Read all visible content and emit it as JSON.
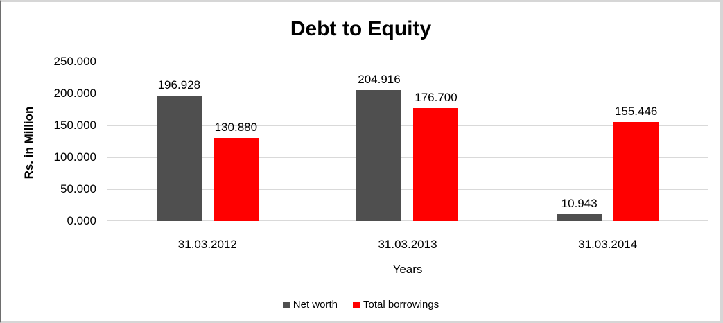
{
  "chart_data": {
    "type": "bar",
    "title": "Debt to Equity",
    "xlabel": "Years",
    "ylabel": "Rs. in Million",
    "categories": [
      "31.03.2012",
      "31.03.2013",
      "31.03.2014"
    ],
    "series": [
      {
        "name": "Net worth",
        "color": "#4f4f4f",
        "values": [
          196.928,
          204.916,
          10.943
        ],
        "labels": [
          "196.928",
          "204.916",
          "10.943"
        ]
      },
      {
        "name": "Total borrowings",
        "color": "#ff0000",
        "values": [
          130.88,
          176.7,
          155.446
        ],
        "labels": [
          "130.880",
          "176.700",
          "155.446"
        ]
      }
    ],
    "ylim": [
      0,
      250
    ],
    "yticks": [
      {
        "value": 0,
        "label": "0.000"
      },
      {
        "value": 50,
        "label": "50.000"
      },
      {
        "value": 100,
        "label": "100.000"
      },
      {
        "value": 150,
        "label": "150.000"
      },
      {
        "value": 200,
        "label": "200.000"
      },
      {
        "value": 250,
        "label": "250.000"
      }
    ],
    "grid": true,
    "gridline_color": "#d9d9d9",
    "legend_position": "bottom"
  }
}
